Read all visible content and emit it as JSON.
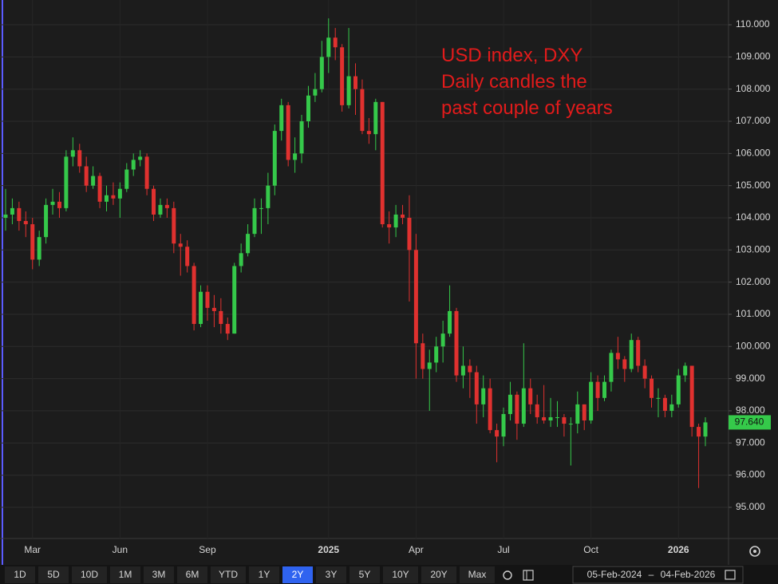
{
  "chart_data": {
    "type": "candlestick",
    "annotation": [
      "USD index, DXY",
      "Daily candles the",
      "past couple of years"
    ],
    "categories": [
      null,
      null,
      null,
      null,
      "Mar",
      null,
      null,
      null,
      null,
      null,
      null,
      null,
      null,
      null,
      null,
      null,
      null,
      "Jun",
      null,
      null,
      null,
      null,
      null,
      null,
      null,
      null,
      null,
      null,
      null,
      null,
      "Sep",
      null,
      null,
      null,
      null,
      null,
      null,
      null,
      null,
      null,
      null,
      null,
      null,
      null,
      null,
      null,
      null,
      null,
      "2025",
      null,
      null,
      null,
      null,
      null,
      null,
      null,
      null,
      null,
      null,
      null,
      null,
      "Apr",
      null,
      null,
      null,
      null,
      null,
      null,
      null,
      null,
      null,
      null,
      null,
      null,
      "Jul",
      null,
      null,
      null,
      null,
      null,
      null,
      null,
      null,
      null,
      null,
      null,
      null,
      "Oct",
      null,
      null,
      null,
      null,
      null,
      null,
      null,
      null,
      null,
      null,
      null,
      null,
      "2026",
      null,
      null,
      null,
      null
    ],
    "open": [
      104.0,
      104.1,
      104.3,
      103.9,
      103.8,
      102.7,
      103.4,
      104.4,
      104.5,
      104.3,
      105.9,
      106.1,
      105.6,
      105.0,
      105.3,
      104.5,
      104.7,
      104.6,
      104.9,
      105.5,
      105.8,
      105.9,
      104.9,
      104.1,
      104.4,
      104.3,
      103.2,
      103.1,
      102.5,
      100.7,
      101.7,
      101.2,
      101.1,
      100.7,
      100.4,
      102.5,
      102.9,
      103.5,
      104.3,
      104.3,
      105.0,
      106.7,
      107.5,
      105.8,
      106.0,
      107.0,
      107.8,
      108.0,
      109.0,
      109.6,
      109.3,
      107.5,
      108.4,
      108.0,
      106.7,
      106.6,
      107.6,
      103.8,
      103.7,
      104.1,
      104.0,
      103.0,
      100.1,
      99.3,
      99.5,
      100.0,
      100.4,
      101.1,
      99.1,
      99.4,
      99.2,
      98.2,
      98.7,
      97.4,
      97.2,
      97.9,
      98.5,
      97.6,
      98.7,
      98.2,
      97.8,
      97.7,
      97.8,
      97.8,
      97.6,
      97.6,
      98.2,
      97.7,
      98.9,
      98.4,
      98.9,
      99.8,
      99.6,
      99.3,
      100.2,
      99.4,
      99.0,
      98.4,
      98.4,
      98.0,
      98.2,
      99.1,
      99.4,
      97.5,
      97.2
    ],
    "high": [
      104.9,
      104.6,
      104.5,
      104.2,
      104.0,
      103.6,
      104.6,
      104.9,
      104.8,
      106.1,
      106.5,
      106.3,
      105.9,
      105.6,
      105.4,
      105.0,
      105.1,
      105.1,
      105.7,
      106.0,
      106.1,
      106.0,
      105.0,
      104.6,
      104.6,
      104.5,
      103.5,
      103.3,
      102.6,
      101.9,
      101.9,
      101.6,
      101.5,
      100.9,
      102.6,
      103.2,
      103.8,
      104.6,
      104.6,
      105.4,
      106.9,
      107.7,
      107.6,
      106.5,
      107.2,
      108.1,
      108.5,
      109.5,
      110.2,
      109.9,
      109.4,
      109.9,
      108.8,
      108.3,
      107.1,
      107.7,
      107.6,
      104.2,
      104.4,
      104.4,
      104.7,
      103.5,
      100.4,
      99.9,
      100.3,
      100.8,
      101.9,
      101.2,
      100.0,
      99.6,
      99.4,
      99.1,
      99.0,
      97.6,
      98.1,
      98.9,
      98.6,
      100.1,
      99.0,
      98.5,
      98.8,
      98.4,
      98.3,
      97.9,
      97.8,
      98.6,
      98.2,
      99.2,
      99.1,
      99.1,
      99.9,
      100.3,
      99.7,
      100.4,
      100.3,
      99.6,
      99.1,
      98.7,
      98.5,
      98.5,
      99.3,
      99.5,
      99.4,
      97.6,
      97.8
    ],
    "low": [
      103.6,
      103.8,
      103.6,
      103.4,
      102.4,
      102.5,
      103.2,
      104.1,
      104.0,
      104.2,
      105.6,
      105.4,
      104.8,
      104.9,
      104.3,
      104.2,
      104.4,
      104.0,
      104.8,
      105.3,
      105.6,
      104.7,
      103.9,
      104.0,
      104.0,
      102.9,
      102.2,
      102.3,
      100.5,
      100.6,
      100.8,
      100.6,
      100.4,
      100.2,
      100.4,
      102.3,
      102.8,
      103.4,
      103.5,
      103.8,
      104.7,
      106.4,
      105.6,
      105.4,
      105.7,
      106.8,
      107.6,
      107.9,
      108.5,
      108.9,
      107.3,
      107.4,
      107.2,
      106.6,
      106.3,
      106.1,
      103.7,
      103.2,
      103.4,
      103.8,
      101.4,
      99.0,
      99.0,
      98.0,
      99.2,
      99.5,
      100.3,
      98.9,
      98.7,
      98.4,
      97.6,
      97.8,
      97.3,
      96.4,
      96.9,
      97.7,
      97.1,
      97.5,
      97.9,
      97.6,
      97.6,
      97.5,
      97.5,
      97.2,
      96.3,
      97.3,
      97.4,
      97.6,
      98.0,
      98.3,
      98.6,
      99.3,
      98.9,
      99.2,
      99.2,
      98.7,
      98.1,
      97.8,
      97.8,
      97.8,
      98.1,
      98.9,
      97.2,
      95.6,
      96.9
    ],
    "close": [
      104.1,
      104.3,
      103.9,
      103.8,
      102.7,
      103.4,
      104.4,
      104.5,
      104.3,
      105.9,
      106.1,
      105.6,
      105.0,
      105.3,
      104.5,
      104.7,
      104.6,
      104.9,
      105.5,
      105.8,
      105.9,
      104.9,
      104.1,
      104.4,
      104.3,
      103.2,
      103.1,
      102.5,
      100.7,
      101.7,
      101.2,
      101.1,
      100.7,
      100.4,
      102.5,
      102.9,
      103.5,
      104.3,
      104.3,
      105.0,
      106.7,
      107.5,
      105.8,
      106.0,
      107.0,
      107.8,
      108.0,
      109.0,
      109.6,
      109.3,
      107.5,
      108.4,
      108.0,
      106.7,
      106.6,
      107.6,
      103.8,
      103.7,
      104.1,
      104.0,
      103.0,
      100.1,
      99.3,
      99.5,
      100.0,
      100.4,
      101.1,
      99.1,
      99.4,
      99.2,
      98.2,
      98.7,
      97.4,
      97.2,
      97.9,
      98.5,
      97.6,
      98.7,
      98.2,
      97.8,
      97.7,
      97.8,
      97.8,
      97.6,
      97.6,
      98.2,
      97.7,
      98.9,
      98.4,
      98.9,
      99.8,
      99.6,
      99.3,
      100.2,
      99.4,
      99.0,
      98.4,
      98.4,
      98.0,
      98.2,
      99.1,
      99.4,
      97.5,
      97.2,
      97.64
    ],
    "last_price_label": "97.640",
    "up_color": "#35c94a",
    "down_color": "#e0312f",
    "annotation_color": "#e21b1b",
    "ylim": [
      94.03,
      110.77
    ],
    "yticks": [
      {
        "value": 95,
        "label": "95.000"
      },
      {
        "value": 96,
        "label": "96.000"
      },
      {
        "value": 97,
        "label": "97.000"
      },
      {
        "value": 98,
        "label": "98.000"
      },
      {
        "value": 99,
        "label": "99.000"
      },
      {
        "value": 100,
        "label": "100.000"
      },
      {
        "value": 101,
        "label": "101.000"
      },
      {
        "value": 102,
        "label": "102.000"
      },
      {
        "value": 103,
        "label": "103.000"
      },
      {
        "value": 104,
        "label": "104.000"
      },
      {
        "value": 105,
        "label": "105.000"
      },
      {
        "value": 106,
        "label": "106.000"
      },
      {
        "value": 107,
        "label": "107.000"
      },
      {
        "value": 108,
        "label": "108.000"
      },
      {
        "value": 109,
        "label": "109.000"
      },
      {
        "value": 110,
        "label": "110.000"
      }
    ],
    "grid": true
  },
  "toolbar": {
    "ranges": [
      "1D",
      "5D",
      "10D",
      "1M",
      "3M",
      "6M",
      "YTD",
      "1Y",
      "2Y",
      "3Y",
      "5Y",
      "10Y",
      "20Y",
      "Max"
    ],
    "selected": "2Y",
    "date_from": "05-Feb-2024",
    "date_separator": "–",
    "date_to": "04-Feb-2026"
  }
}
